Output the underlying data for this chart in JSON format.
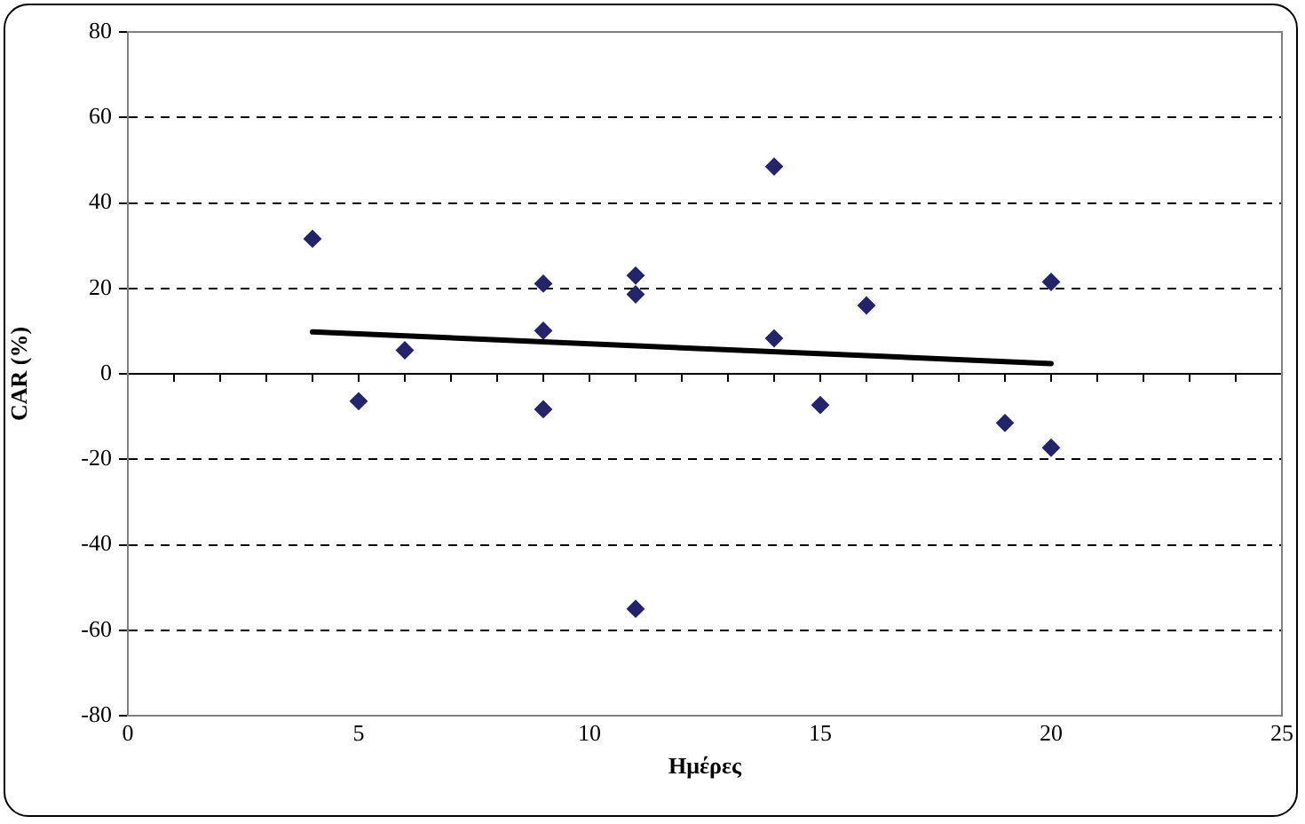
{
  "chart_data": {
    "type": "scatter",
    "xlabel": "Ημέρες",
    "ylabel": "CAR (%)",
    "marker": "diamond",
    "grid": "y",
    "legend": false,
    "xlim": [
      0,
      25
    ],
    "ylim": [
      -80,
      80
    ],
    "xticks": [
      0,
      {
        "value": 1,
        "label": null
      },
      {
        "value": 2,
        "label": null
      },
      {
        "value": 3,
        "label": null
      },
      {
        "value": 4,
        "label": null
      },
      5,
      {
        "value": 6,
        "label": null
      },
      {
        "value": 7,
        "label": null
      },
      {
        "value": 8,
        "label": null
      },
      {
        "value": 9,
        "label": null
      },
      10,
      {
        "value": 11,
        "label": null
      },
      {
        "value": 12,
        "label": null
      },
      {
        "value": 13,
        "label": null
      },
      {
        "value": 14,
        "label": null
      },
      15,
      {
        "value": 16,
        "label": null
      },
      {
        "value": 17,
        "label": null
      },
      {
        "value": 18,
        "label": null
      },
      {
        "value": 19,
        "label": null
      },
      20,
      {
        "value": 21,
        "label": null
      },
      {
        "value": 22,
        "label": null
      },
      {
        "value": 23,
        "label": null
      },
      {
        "value": 24,
        "label": null
      },
      25
    ],
    "yticks": [
      -80,
      -60,
      -40,
      -20,
      0,
      20,
      40,
      60,
      80
    ],
    "series": [
      {
        "color": "#24246b",
        "x": [
          4,
          5,
          6,
          9,
          9,
          9,
          11,
          11,
          11,
          14,
          14,
          15,
          16,
          19,
          20,
          20
        ],
        "values": [
          31.6,
          -6.4,
          5.5,
          21.1,
          10.1,
          -8.3,
          23.0,
          18.6,
          -55.0,
          48.5,
          8.3,
          -7.3,
          16.0,
          -11.5,
          21.5,
          -17.3
        ]
      },
      {
        "type": "line",
        "color": "#000000",
        "marker": "none",
        "x": [
          4,
          20
        ],
        "values": [
          9.8,
          2.4
        ]
      }
    ]
  }
}
